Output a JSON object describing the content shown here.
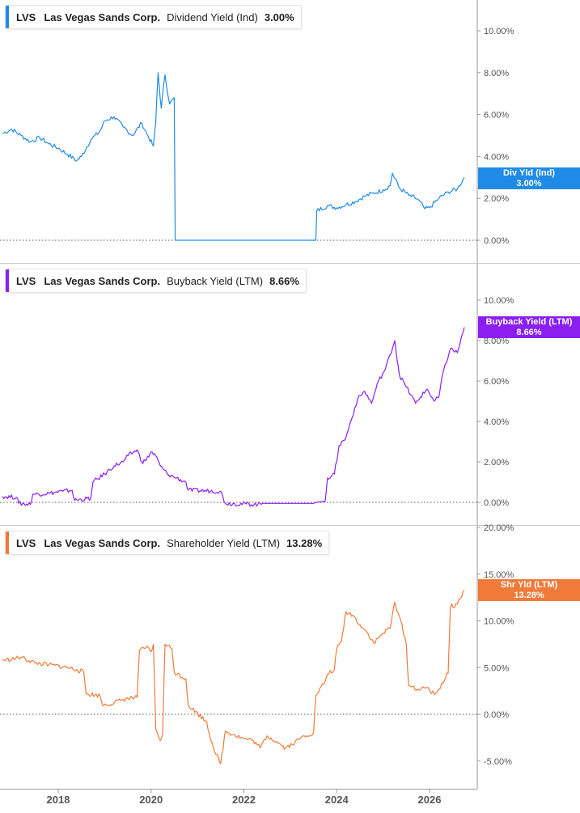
{
  "x_ticks": [
    "2018",
    "2020",
    "2022",
    "2024",
    "2026"
  ],
  "panels": [
    {
      "ticker": "LVS",
      "company": "Las Vegas Sands Corp.",
      "metric": "Dividend Yield (Ind)",
      "value": "3.00%",
      "color": "#1f8be6",
      "tag": {
        "line1": "Div Yld (Ind)",
        "line2": "3.00%"
      },
      "y_ticks": [
        "10.00%",
        "8.00%",
        "6.00%",
        "4.00%",
        "2.00%",
        "0.00%"
      ]
    },
    {
      "ticker": "LVS",
      "company": "Las Vegas Sands Corp.",
      "metric": "Buyback Yield (LTM)",
      "value": "8.66%",
      "color": "#8a1ff0",
      "tag": {
        "line1": "Buyback Yield (LTM)",
        "line2": "8.66%"
      },
      "y_ticks": [
        "10.00%",
        "8.00%",
        "6.00%",
        "4.00%",
        "2.00%",
        "0.00%"
      ]
    },
    {
      "ticker": "LVS",
      "company": "Las Vegas Sands Corp.",
      "metric": "Shareholder Yield (LTM)",
      "value": "13.28%",
      "color": "#f07a3a",
      "tag": {
        "line1": "Shr Yld (LTM)",
        "line2": "13.28%"
      },
      "y_ticks": [
        "20.00%",
        "15.00%",
        "10.00%",
        "5.00%",
        "0.00%",
        "-5.00%"
      ]
    }
  ],
  "chart_data": [
    {
      "type": "line",
      "title": "Dividend Yield (Ind)",
      "x_range": [
        2016.8,
        2026.75
      ],
      "ylim": [
        0,
        11.5
      ],
      "series": [
        {
          "name": "Dividend Yield (Ind)",
          "x": [
            2016.8,
            2017.0,
            2017.2,
            2017.4,
            2017.6,
            2017.8,
            2018.0,
            2018.2,
            2018.4,
            2018.5,
            2018.7,
            2018.9,
            2019.0,
            2019.2,
            2019.4,
            2019.6,
            2019.8,
            2019.95,
            2020.05,
            2020.1,
            2020.15,
            2020.22,
            2020.3,
            2020.4,
            2020.5,
            2020.52,
            2023.55,
            2023.57,
            2023.8,
            2024.0,
            2024.2,
            2024.4,
            2024.6,
            2024.8,
            2025.0,
            2025.15,
            2025.2,
            2025.35,
            2025.55,
            2025.75,
            2025.9,
            2026.0,
            2026.2,
            2026.4,
            2026.6,
            2026.75
          ],
          "y": [
            5.1,
            5.3,
            5.0,
            4.7,
            4.9,
            4.6,
            4.4,
            4.1,
            3.8,
            4.0,
            4.8,
            5.2,
            5.7,
            5.9,
            5.4,
            5.0,
            5.6,
            4.9,
            4.5,
            5.6,
            8.0,
            6.3,
            7.9,
            6.5,
            6.8,
            0.0,
            0.0,
            1.4,
            1.65,
            1.55,
            1.7,
            1.85,
            2.1,
            2.25,
            2.4,
            2.6,
            3.2,
            2.5,
            2.15,
            1.95,
            1.5,
            1.55,
            2.0,
            2.3,
            2.45,
            3.0
          ]
        }
      ]
    },
    {
      "type": "line",
      "title": "Buyback Yield (LTM)",
      "x_range": [
        2016.8,
        2026.75
      ],
      "ylim": [
        -0.4,
        10.8
      ],
      "series": [
        {
          "name": "Buyback Yield (LTM)",
          "x": [
            2016.8,
            2017.1,
            2017.15,
            2017.4,
            2017.45,
            2017.8,
            2018.1,
            2018.3,
            2018.35,
            2018.7,
            2018.75,
            2019.0,
            2019.2,
            2019.4,
            2019.5,
            2019.7,
            2019.8,
            2019.9,
            2020.0,
            2020.1,
            2020.2,
            2020.35,
            2020.55,
            2020.75,
            2020.8,
            2021.5,
            2021.6,
            2022.3,
            2022.4,
            2023.5,
            2023.55,
            2023.75,
            2023.8,
            2023.95,
            2024.05,
            2024.2,
            2024.3,
            2024.45,
            2024.6,
            2024.75,
            2024.9,
            2025.05,
            2025.15,
            2025.25,
            2025.35,
            2025.5,
            2025.7,
            2025.8,
            2025.95,
            2026.1,
            2026.2,
            2026.3,
            2026.45,
            2026.6,
            2026.75
          ],
          "y": [
            0.3,
            0.25,
            -0.05,
            -0.1,
            0.4,
            0.45,
            0.55,
            0.6,
            0.1,
            0.2,
            1.0,
            1.4,
            1.8,
            2.0,
            2.3,
            2.6,
            2.0,
            2.1,
            2.5,
            2.3,
            1.8,
            1.4,
            1.2,
            1.0,
            0.6,
            0.55,
            -0.05,
            -0.1,
            -0.05,
            -0.05,
            0.0,
            0.05,
            1.2,
            1.4,
            2.8,
            3.2,
            4.0,
            5.1,
            5.5,
            4.9,
            6.0,
            6.6,
            7.3,
            8.0,
            6.3,
            5.7,
            4.9,
            5.2,
            5.6,
            5.0,
            5.2,
            6.5,
            7.6,
            7.4,
            8.66
          ]
        }
      ]
    },
    {
      "type": "line",
      "title": "Shareholder Yield (LTM)",
      "x_range": [
        2016.8,
        2026.75
      ],
      "ylim": [
        -9,
        22
      ],
      "series": [
        {
          "name": "Shareholder Yield (LTM)",
          "x": [
            2016.8,
            2017.0,
            2017.2,
            2017.5,
            2017.8,
            2018.1,
            2018.4,
            2018.55,
            2018.6,
            2018.9,
            2018.95,
            2019.2,
            2019.4,
            2019.7,
            2019.75,
            2019.9,
            2020.0,
            2020.05,
            2020.1,
            2020.2,
            2020.25,
            2020.3,
            2020.45,
            2020.5,
            2020.75,
            2020.8,
            2021.2,
            2021.25,
            2021.4,
            2021.5,
            2021.6,
            2021.8,
            2022.0,
            2022.2,
            2022.35,
            2022.5,
            2022.7,
            2022.9,
            2023.1,
            2023.3,
            2023.5,
            2023.55,
            2023.75,
            2023.8,
            2023.95,
            2024.0,
            2024.1,
            2024.2,
            2024.35,
            2024.5,
            2024.65,
            2024.8,
            2025.0,
            2025.15,
            2025.25,
            2025.35,
            2025.5,
            2025.55,
            2025.8,
            2025.95,
            2026.1,
            2026.15,
            2026.4,
            2026.45,
            2026.6,
            2026.75
          ],
          "y": [
            5.8,
            5.9,
            6.1,
            5.5,
            5.3,
            5.1,
            4.8,
            4.5,
            2.2,
            2.0,
            1.0,
            1.2,
            1.6,
            1.8,
            6.8,
            7.2,
            6.7,
            7.5,
            -1.6,
            -2.8,
            -2.0,
            7.5,
            7.0,
            4.5,
            3.8,
            1.0,
            -0.8,
            -2.0,
            -4.3,
            -5.3,
            -1.8,
            -2.2,
            -2.6,
            -2.8,
            -3.6,
            -2.3,
            -2.9,
            -3.6,
            -3.0,
            -2.3,
            -2.0,
            2.0,
            3.5,
            4.3,
            4.8,
            7.0,
            7.8,
            11.0,
            10.6,
            9.6,
            8.8,
            7.6,
            8.7,
            9.2,
            12.0,
            10.5,
            7.5,
            3.1,
            2.6,
            2.9,
            2.1,
            2.3,
            4.4,
            11.5,
            11.8,
            13.28
          ]
        }
      ]
    }
  ]
}
